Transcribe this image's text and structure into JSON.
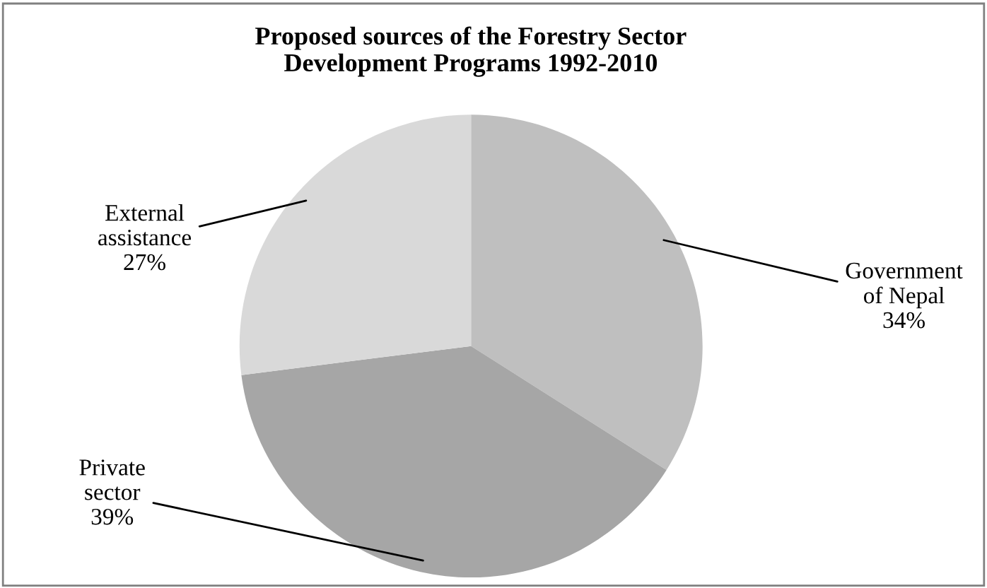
{
  "chart_data": {
    "type": "pie",
    "title": "Proposed sources of the Forestry Sector\nDevelopment Programs 1992-2010",
    "categories": [
      "Government\nof Nepal",
      "Private\nsector",
      "External\nassistance"
    ],
    "values": [
      34,
      39,
      27
    ],
    "colors": [
      "#bfbfbf",
      "#a6a6a6",
      "#d9d9d9"
    ],
    "value_labels": [
      "34%",
      "39%",
      "27%"
    ],
    "legend": false
  }
}
